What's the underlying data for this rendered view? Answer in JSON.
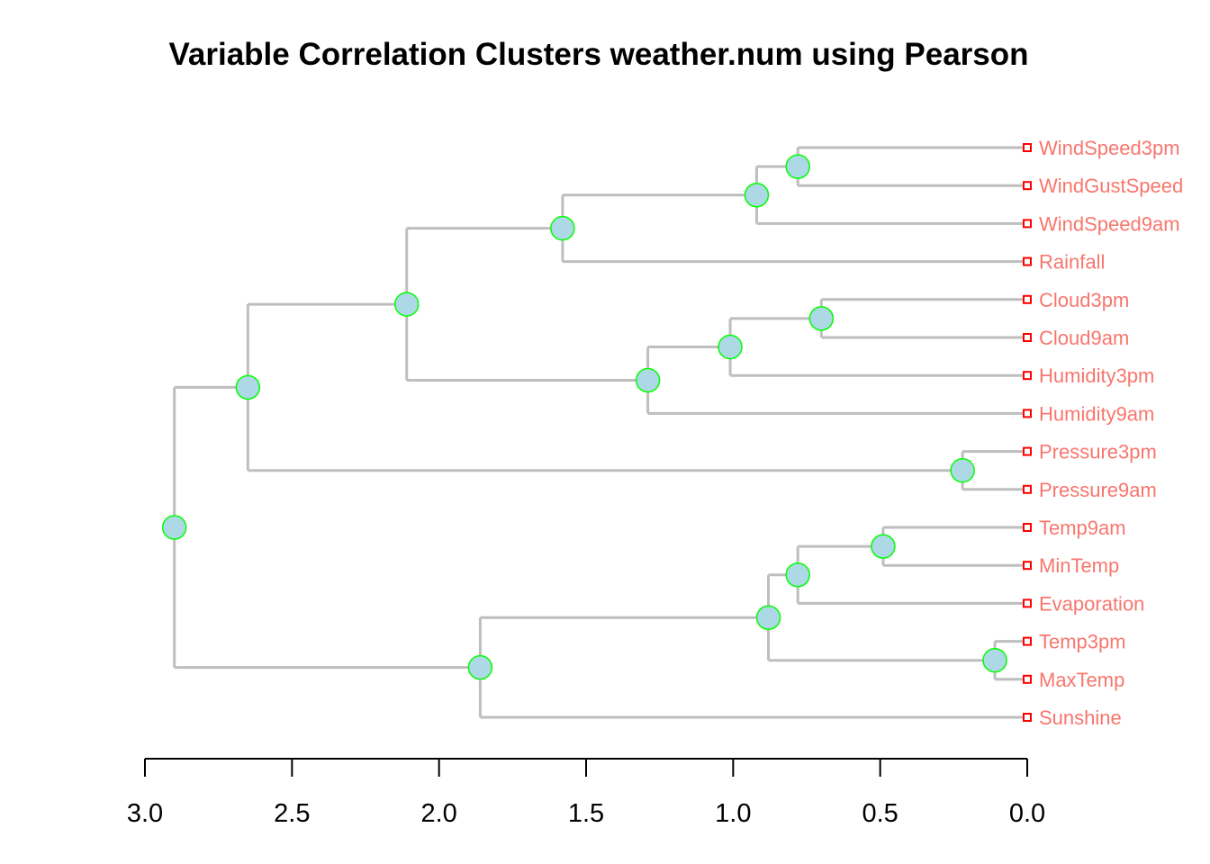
{
  "chart_data": {
    "type": "dendrogram",
    "title": "Variable Correlation Clusters weather.num using Pearson",
    "x_ticks": [
      "3.0",
      "2.5",
      "2.0",
      "1.5",
      "1.0",
      "0.5",
      "0.0"
    ],
    "x_tick_values": [
      3.0,
      2.5,
      2.0,
      1.5,
      1.0,
      0.5,
      0.0
    ],
    "xlim": [
      3.0,
      0.0
    ],
    "leaves": [
      "WindSpeed3pm",
      "WindGustSpeed",
      "WindSpeed9am",
      "Rainfall",
      "Cloud3pm",
      "Cloud9am",
      "Humidity3pm",
      "Humidity9am",
      "Pressure3pm",
      "Pressure9am",
      "Temp9am",
      "MinTemp",
      "Evaporation",
      "Temp3pm",
      "MaxTemp",
      "Sunshine"
    ],
    "merges": [
      {
        "id": "n1",
        "height": 0.78,
        "children": [
          "WindSpeed3pm",
          "WindGustSpeed"
        ]
      },
      {
        "id": "n2",
        "height": 0.92,
        "children": [
          "n1",
          "WindSpeed9am"
        ]
      },
      {
        "id": "n3",
        "height": 1.58,
        "children": [
          "n2",
          "Rainfall"
        ]
      },
      {
        "id": "n4",
        "height": 0.7,
        "children": [
          "Cloud3pm",
          "Cloud9am"
        ]
      },
      {
        "id": "n5",
        "height": 1.01,
        "children": [
          "n4",
          "Humidity3pm"
        ]
      },
      {
        "id": "n6",
        "height": 1.29,
        "children": [
          "n5",
          "Humidity9am"
        ]
      },
      {
        "id": "n7",
        "height": 2.11,
        "children": [
          "n3",
          "n6"
        ]
      },
      {
        "id": "n8",
        "height": 0.22,
        "children": [
          "Pressure3pm",
          "Pressure9am"
        ]
      },
      {
        "id": "n9",
        "height": 2.65,
        "children": [
          "n7",
          "n8"
        ]
      },
      {
        "id": "n10",
        "height": 0.49,
        "children": [
          "Temp9am",
          "MinTemp"
        ]
      },
      {
        "id": "n11",
        "height": 0.78,
        "children": [
          "n10",
          "Evaporation"
        ]
      },
      {
        "id": "n12",
        "height": 0.11,
        "children": [
          "Temp3pm",
          "MaxTemp"
        ]
      },
      {
        "id": "n13",
        "height": 0.88,
        "children": [
          "n11",
          "n12"
        ]
      },
      {
        "id": "n14",
        "height": 1.86,
        "children": [
          "n13",
          "Sunshine"
        ]
      },
      {
        "id": "n15",
        "height": 2.9,
        "children": [
          "n9",
          "n14"
        ]
      }
    ],
    "colors": {
      "branch": "#bebebe",
      "node_fill": "#add8e6",
      "node_stroke": "#00ff00",
      "leaf_label": "#f8766d",
      "leaf_marker": "#ff0000",
      "axis": "#000000"
    }
  }
}
